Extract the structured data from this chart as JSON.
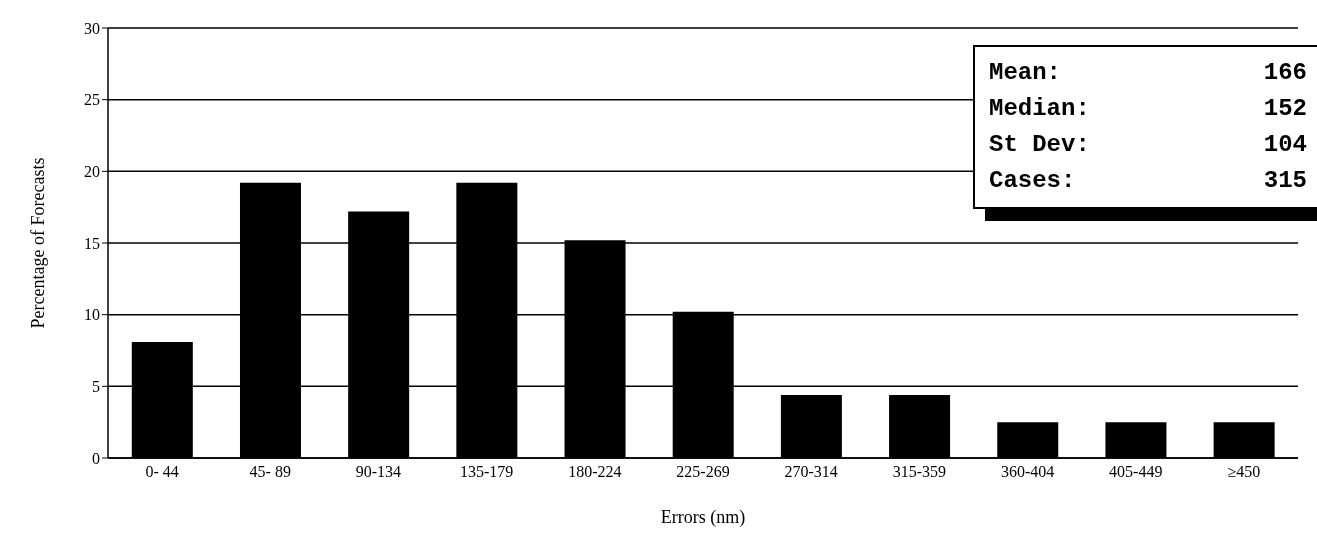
{
  "chart_data": {
    "type": "bar",
    "xlabel": "Errors (nm)",
    "ylabel": "Percentage of Forecasts",
    "categories": [
      "0- 44",
      "45- 89",
      "90-134",
      "135-179",
      "180-224",
      "225-269",
      "270-314",
      "315-359",
      "360-404",
      "405-449",
      "≥450"
    ],
    "values": [
      8.1,
      19.2,
      17.2,
      19.2,
      15.2,
      10.2,
      4.4,
      4.4,
      2.5,
      2.5,
      2.5
    ],
    "color": "#000000",
    "ylim": [
      0,
      30
    ],
    "yticks": [
      0,
      5,
      10,
      15,
      20,
      25,
      30
    ],
    "grid": "y",
    "annotations": [
      "Mean: 166",
      "Median: 152",
      "St Dev: 104",
      "Cases: 315"
    ]
  }
}
